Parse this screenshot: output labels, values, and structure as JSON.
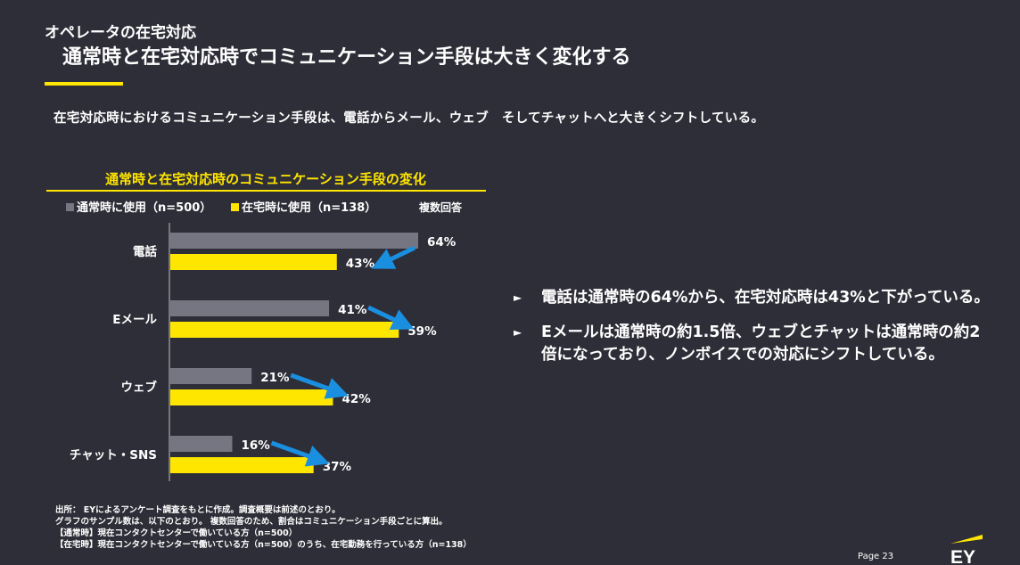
{
  "header": {
    "kicker": "オペレータの在宅対応",
    "title": "通常時と在宅対応時でコミュニケーション手段は大きく変化する",
    "lead": "在宅対応時におけるコミュニケーション手段は、電話からメール、ウェブ　そしてチャットへと大きくシフトしている。"
  },
  "chart_data": {
    "type": "bar",
    "orientation": "horizontal",
    "title": "通常時と在宅対応時のコミュニケーション手段の変化",
    "note": "複数回答",
    "categories": [
      "電話",
      "Eメール",
      "ウェブ",
      "チャット・SNS"
    ],
    "series": [
      {
        "name": "通常時に使用（n=500）",
        "color": "#757681",
        "values": [
          64,
          41,
          21,
          16
        ],
        "labels": [
          "64%",
          "41%",
          "21%",
          "16%"
        ]
      },
      {
        "name": "在宅時に使用（n=138）",
        "color": "#ffe600",
        "values": [
          43,
          59,
          42,
          37
        ],
        "labels": [
          "43%",
          "59%",
          "42%",
          "37%"
        ]
      }
    ],
    "xlim": [
      0,
      64
    ],
    "legend": "top-left",
    "grid": false,
    "arrow_color": "#1a8fe0"
  },
  "bullets": [
    "電話は通常時の64%から、在宅対応時は43%と下がっている。",
    "Eメールは通常時の約1.5倍、ウェブとチャットは通常時の約2倍になっており、ノンボイスでの対応にシフトしている。"
  ],
  "bullet_mark": "►",
  "notes": [
    "出所：  EYによるアンケート調査をもとに作成。調査概要は前述のとおり。",
    "グラフのサンプル数は、以下のとおり。  複数回答のため、割合はコミュニケーション手段ごとに算出。",
    "【通常時】現在コンタクトセンターで働いている方（n=500）",
    "【在宅時】現在コンタクトセンターで働いている方（n=500）のうち、在宅勤務を行っている方（n=138）"
  ],
  "footer": {
    "page": "Page 23",
    "logo_text": "EY"
  },
  "colors": {
    "background": "#2e2e38",
    "accent": "#ffe600"
  }
}
